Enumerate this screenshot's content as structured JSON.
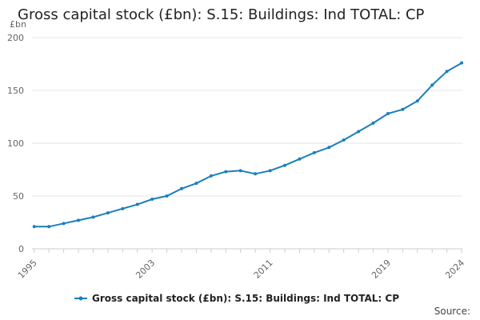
{
  "chart_data": {
    "type": "line",
    "title": "Gross capital stock (£bn): S.15: Buildings: Ind TOTAL: CP",
    "ylabel": "£bn",
    "xlabel": "",
    "ylim": [
      0,
      200
    ],
    "yticks": [
      0,
      50,
      100,
      150,
      200
    ],
    "xticks": [
      1995,
      2003,
      2011,
      2019,
      2024
    ],
    "grid": true,
    "legend_position": "bottom",
    "series": [
      {
        "name": "Gross capital stock (£bn): S.15: Buildings: Ind TOTAL: CP",
        "color": "#1f77b4",
        "x": [
          1995,
          1996,
          1997,
          1998,
          1999,
          2000,
          2001,
          2002,
          2003,
          2004,
          2005,
          2006,
          2007,
          2008,
          2009,
          2010,
          2011,
          2012,
          2013,
          2014,
          2015,
          2016,
          2017,
          2018,
          2019,
          2020,
          2021,
          2022,
          2023,
          2024
        ],
        "values": [
          21,
          21,
          24,
          27,
          30,
          34,
          38,
          42,
          47,
          50,
          57,
          62,
          69,
          73,
          74,
          71,
          74,
          79,
          85,
          91,
          96,
          103,
          111,
          119,
          128,
          132,
          140,
          155,
          168,
          176
        ]
      }
    ]
  },
  "source_label": "Source:",
  "colors": {
    "line": "#1a7fba",
    "grid": "#e6e6e6",
    "axis": "#cccccc"
  }
}
